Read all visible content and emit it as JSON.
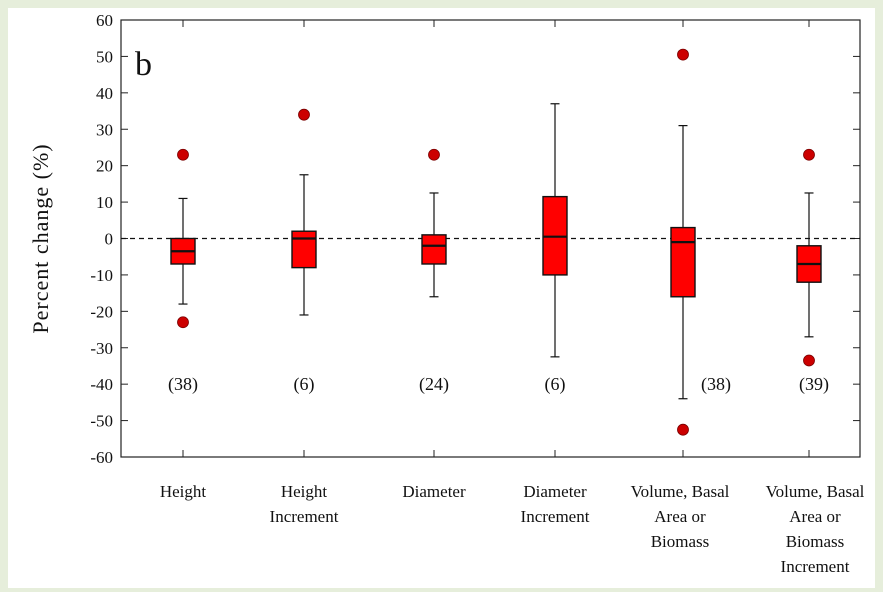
{
  "chart_data": {
    "type": "box",
    "panel_label": "b",
    "ylabel": "Percent change (%)",
    "xlabel": "",
    "ylim": [
      -60,
      60
    ],
    "yticks": [
      60,
      50,
      40,
      30,
      20,
      10,
      0,
      -10,
      -20,
      -30,
      -40,
      -50,
      -60
    ],
    "reference_line": 0,
    "box_color": "#ff0000",
    "outlier_color": "#cc0000",
    "categories": [
      {
        "lines": [
          "Height"
        ],
        "n_label": "(38)",
        "whisker_low": -18,
        "q1": -7,
        "median": -3.5,
        "q3": 0,
        "whisker_high": 11,
        "outliers": [
          23,
          -23
        ]
      },
      {
        "lines": [
          "Height",
          "Increment"
        ],
        "n_label": "(6)",
        "whisker_low": -21,
        "q1": -8,
        "median": 0,
        "q3": 2,
        "whisker_high": 17.5,
        "outliers": [
          34
        ]
      },
      {
        "lines": [
          "Diameter"
        ],
        "n_label": "(24)",
        "whisker_low": -16,
        "q1": -7,
        "median": -2,
        "q3": 1,
        "whisker_high": 12.5,
        "outliers": [
          23
        ]
      },
      {
        "lines": [
          "Diameter",
          "Increment"
        ],
        "n_label": "(6)",
        "whisker_low": -32.5,
        "q1": -10,
        "median": 0.5,
        "q3": 11.5,
        "whisker_high": 37,
        "outliers": []
      },
      {
        "lines": [
          "Volume,  Basal",
          "Area or",
          "Biomass"
        ],
        "n_label": "(38)",
        "whisker_low": -44,
        "q1": -16,
        "median": -1,
        "q3": 3,
        "whisker_high": 31,
        "outliers": [
          50.5,
          -52.5
        ]
      },
      {
        "lines": [
          "Volume,  Basal",
          "Area or",
          "Biomass",
          "Increment"
        ],
        "n_label": "(39)",
        "whisker_low": -27,
        "q1": -12,
        "median": -7,
        "q3": -2,
        "whisker_high": 12.5,
        "outliers": [
          23,
          -33.5
        ]
      }
    ]
  }
}
